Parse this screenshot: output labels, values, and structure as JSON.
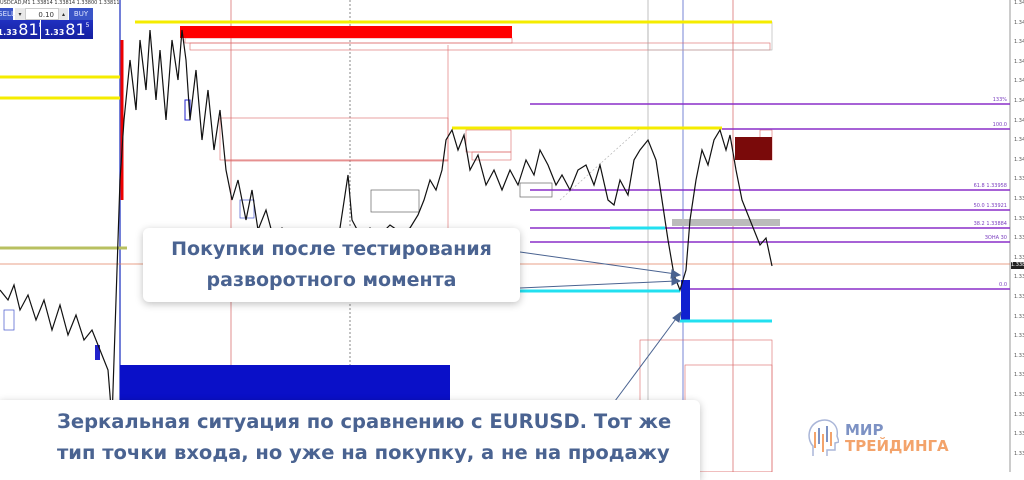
{
  "trade_panel": {
    "title": "USDCAD,M1  1.33814 1.33814 1.33800 1.33811",
    "sell_label": "SELL",
    "buy_label": "BUY",
    "lot_value": "0.10",
    "sell_price_prefix": "1.33",
    "sell_price_big": "81",
    "sell_price_sup": "8",
    "buy_price_prefix": "1.33",
    "buy_price_big": "81",
    "buy_price_sup": "5"
  },
  "price_axis": [
    "1.343",
    "1.342",
    "1.342",
    "1.342",
    "1.341",
    "1.341",
    "1.341",
    "1.340",
    "1.340",
    "1.339",
    "1.339",
    "1.339",
    "1.338",
    "1.338",
    "1.337",
    "1.337",
    "1.337",
    "1.336",
    "1.336",
    "1.335",
    "1.335",
    "1.335",
    "1.334",
    "1.334"
  ],
  "current_price": "1.338",
  "fib_levels": [
    "133%",
    "100.0",
    "61.8  1.33958",
    "50.0  1.33921",
    "38.2  1.33884",
    "ЗОНА 30",
    "0.0"
  ],
  "callouts": {
    "buy_after_test_line1": "Покупки после тестирования",
    "buy_after_test_line2": "разворотного момента",
    "mirror_line1": "Зеркальная ситуация по сравнению с EURUSD. Тот же",
    "mirror_line2": "тип точки входа, но уже на покупку, а не на продажу"
  },
  "logo": {
    "line1": "МИР",
    "line2": "ТРЕЙДИНГА"
  },
  "colors": {
    "yellow": "#f5ec00",
    "red_zone": "#ff0000",
    "blue_zone": "#0a10c8",
    "cyan": "#22e0f0",
    "fib": "#8a2fc9",
    "dark_red": "#7a0a0a",
    "callout_text": "#4a6391"
  }
}
